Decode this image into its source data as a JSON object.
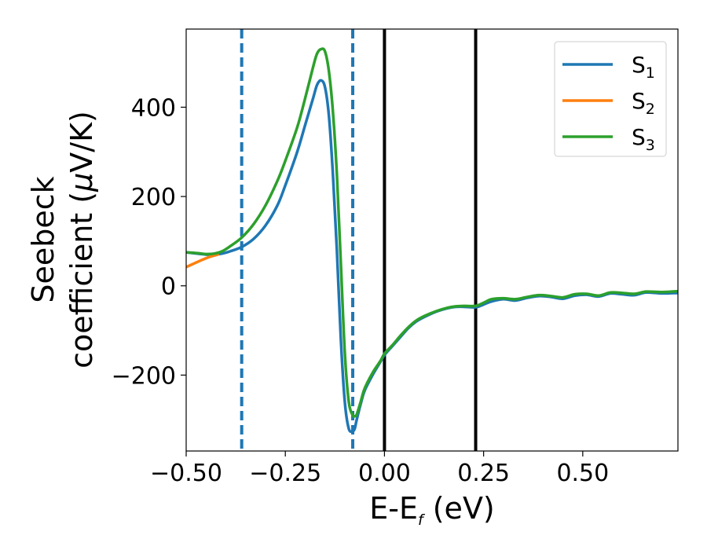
{
  "chart_data": {
    "type": "line",
    "title": "",
    "xlabel": {
      "main": "E-E",
      "sub": "f",
      "unit": " (eV)"
    },
    "ylabel": {
      "line1": "Seebeck",
      "line2": "coefficient  (",
      "mu": "μ",
      "line2_end": "V/K)"
    },
    "xlim": [
      -0.5,
      0.74
    ],
    "ylim": [
      -370,
      575
    ],
    "x_ticks": [
      -0.5,
      -0.25,
      0.0,
      0.25,
      0.5
    ],
    "x_tick_labels": [
      "−0.50",
      "−0.25",
      "0.00",
      "0.25",
      "0.50"
    ],
    "y_ticks": [
      -200,
      0,
      200,
      400
    ],
    "y_tick_labels": [
      "−200",
      "0",
      "200",
      "400"
    ],
    "grid": false,
    "legend_position": "top-right",
    "vertical_lines": [
      {
        "x": -0.36,
        "style": "dashed",
        "color": "#1f77b4"
      },
      {
        "x": -0.08,
        "style": "dashed",
        "color": "#1f77b4"
      },
      {
        "x": 0.0,
        "style": "solid",
        "color": "#000000"
      },
      {
        "x": 0.23,
        "style": "solid",
        "color": "#000000"
      }
    ],
    "series": [
      {
        "name": "S",
        "sub": "1",
        "color": "#1f77b4",
        "x": [
          -0.5,
          -0.47,
          -0.45,
          -0.43,
          -0.41,
          -0.39,
          -0.36,
          -0.33,
          -0.3,
          -0.27,
          -0.25,
          -0.22,
          -0.2,
          -0.18,
          -0.17,
          -0.16,
          -0.15,
          -0.14,
          -0.13,
          -0.12,
          -0.11,
          -0.1,
          -0.09,
          -0.08,
          -0.075,
          -0.07,
          -0.06,
          -0.05,
          -0.03,
          -0.01,
          0.0,
          0.02,
          0.04,
          0.06,
          0.08,
          0.1,
          0.13,
          0.16,
          0.18,
          0.2,
          0.23,
          0.25,
          0.27,
          0.3,
          0.33,
          0.36,
          0.39,
          0.42,
          0.45,
          0.48,
          0.51,
          0.54,
          0.57,
          0.6,
          0.63,
          0.66,
          0.7,
          0.74
        ],
        "y": [
          75,
          72,
          70,
          70,
          72,
          77,
          87,
          105,
          135,
          180,
          225,
          300,
          360,
          420,
          450,
          460,
          445,
          380,
          250,
          80,
          -120,
          -260,
          -320,
          -325,
          -320,
          -300,
          -265,
          -235,
          -200,
          -170,
          -155,
          -135,
          -115,
          -95,
          -80,
          -70,
          -58,
          -50,
          -47,
          -47,
          -48,
          -42,
          -35,
          -30,
          -33,
          -27,
          -23,
          -25,
          -29,
          -22,
          -20,
          -24,
          -17,
          -19,
          -21,
          -15,
          -17,
          -16
        ]
      },
      {
        "name": "S",
        "sub": "2",
        "color": "#ff7f0e",
        "x": [
          -0.5,
          -0.48,
          -0.46,
          -0.44,
          -0.42
        ],
        "y": [
          42,
          50,
          58,
          65,
          70
        ]
      },
      {
        "name": "S",
        "sub": "3",
        "color": "#2ca02c",
        "x": [
          -0.5,
          -0.47,
          -0.45,
          -0.43,
          -0.41,
          -0.39,
          -0.36,
          -0.33,
          -0.3,
          -0.27,
          -0.25,
          -0.22,
          -0.2,
          -0.18,
          -0.17,
          -0.16,
          -0.15,
          -0.14,
          -0.13,
          -0.12,
          -0.11,
          -0.1,
          -0.09,
          -0.08,
          -0.075,
          -0.07,
          -0.06,
          -0.05,
          -0.03,
          -0.01,
          0.0,
          0.02,
          0.04,
          0.06,
          0.08,
          0.1,
          0.13,
          0.16,
          0.18,
          0.2,
          0.23,
          0.25,
          0.27,
          0.3,
          0.33,
          0.36,
          0.39,
          0.42,
          0.45,
          0.48,
          0.51,
          0.54,
          0.57,
          0.6,
          0.63,
          0.66,
          0.7,
          0.74
        ],
        "y": [
          75,
          73,
          71,
          72,
          77,
          88,
          108,
          138,
          180,
          235,
          280,
          355,
          420,
          490,
          520,
          530,
          525,
          480,
          390,
          250,
          50,
          -150,
          -260,
          -290,
          -292,
          -288,
          -260,
          -230,
          -195,
          -168,
          -152,
          -133,
          -112,
          -93,
          -78,
          -68,
          -57,
          -49,
          -46,
          -45,
          -45,
          -38,
          -30,
          -28,
          -30,
          -25,
          -21,
          -23,
          -26,
          -19,
          -18,
          -22,
          -15,
          -16,
          -18,
          -13,
          -14,
          -12
        ]
      }
    ]
  }
}
